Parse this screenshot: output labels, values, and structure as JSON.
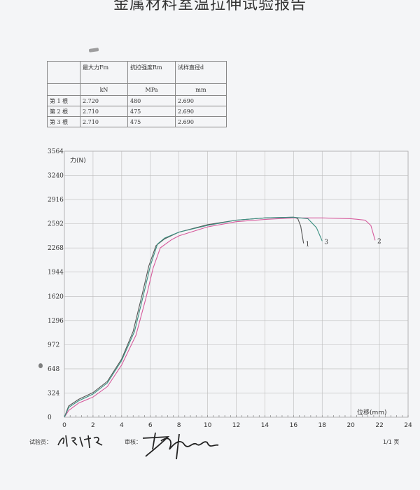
{
  "report": {
    "title": "金属材料室温拉伸试验报告"
  },
  "table": {
    "headers": [
      "",
      "最大力Fm",
      "抗拉强度Rm",
      "试样直径d"
    ],
    "units": [
      "",
      "kN",
      "MPa",
      "mm"
    ],
    "rows": [
      {
        "label": "第 1 根",
        "fm": "2.720",
        "rm": "480",
        "d": "2.690"
      },
      {
        "label": "第 2 根",
        "fm": "2.710",
        "rm": "475",
        "d": "2.690"
      },
      {
        "label": "第 3 根",
        "fm": "2.710",
        "rm": "475",
        "d": "2.690"
      }
    ]
  },
  "chart_data": {
    "type": "line",
    "title": "",
    "xlabel": "位移(mm)",
    "ylabel": "力(N)",
    "xlim": [
      0,
      24
    ],
    "ylim": [
      0,
      3564
    ],
    "xticks": [
      0,
      2,
      4,
      6,
      8,
      10,
      12,
      14,
      16,
      18,
      20,
      22,
      24
    ],
    "yticks": [
      0,
      324,
      648,
      972,
      1296,
      1620,
      1944,
      2268,
      2592,
      2916,
      3240,
      3564
    ],
    "grid": true,
    "series": [
      {
        "name": "1",
        "color": "#555555",
        "points": [
          [
            0,
            0
          ],
          [
            0.3,
            150
          ],
          [
            1,
            240
          ],
          [
            2,
            330
          ],
          [
            3,
            480
          ],
          [
            4,
            780
          ],
          [
            4.8,
            1150
          ],
          [
            5.4,
            1620
          ],
          [
            5.9,
            2030
          ],
          [
            6.4,
            2300
          ],
          [
            7,
            2390
          ],
          [
            8,
            2480
          ],
          [
            10,
            2580
          ],
          [
            12,
            2640
          ],
          [
            14,
            2670
          ],
          [
            16,
            2680
          ],
          [
            16.3,
            2660
          ],
          [
            16.5,
            2560
          ],
          [
            16.7,
            2330
          ]
        ]
      },
      {
        "name": "2",
        "color": "#d65a9c",
        "points": [
          [
            0,
            0
          ],
          [
            0.3,
            90
          ],
          [
            1,
            190
          ],
          [
            2,
            270
          ],
          [
            3,
            410
          ],
          [
            4,
            700
          ],
          [
            5,
            1100
          ],
          [
            5.7,
            1600
          ],
          [
            6.2,
            2000
          ],
          [
            6.7,
            2270
          ],
          [
            7.5,
            2380
          ],
          [
            8,
            2430
          ],
          [
            10,
            2550
          ],
          [
            12,
            2620
          ],
          [
            14,
            2650
          ],
          [
            16,
            2670
          ],
          [
            18,
            2670
          ],
          [
            20,
            2660
          ],
          [
            21,
            2640
          ],
          [
            21.4,
            2570
          ],
          [
            21.7,
            2370
          ]
        ]
      },
      {
        "name": "3",
        "color": "#3a8f80",
        "points": [
          [
            0,
            0
          ],
          [
            0.3,
            130
          ],
          [
            1,
            220
          ],
          [
            2,
            310
          ],
          [
            3,
            460
          ],
          [
            4,
            760
          ],
          [
            4.9,
            1150
          ],
          [
            5.5,
            1620
          ],
          [
            6,
            2030
          ],
          [
            6.5,
            2320
          ],
          [
            7,
            2400
          ],
          [
            8,
            2480
          ],
          [
            10,
            2570
          ],
          [
            12,
            2640
          ],
          [
            14,
            2670
          ],
          [
            16,
            2680
          ],
          [
            17,
            2660
          ],
          [
            17.6,
            2540
          ],
          [
            18,
            2360
          ]
        ]
      }
    ]
  },
  "footer": {
    "tester_label": "试验员：",
    "reviewer_label": "审核：",
    "page": "1/1 页"
  }
}
